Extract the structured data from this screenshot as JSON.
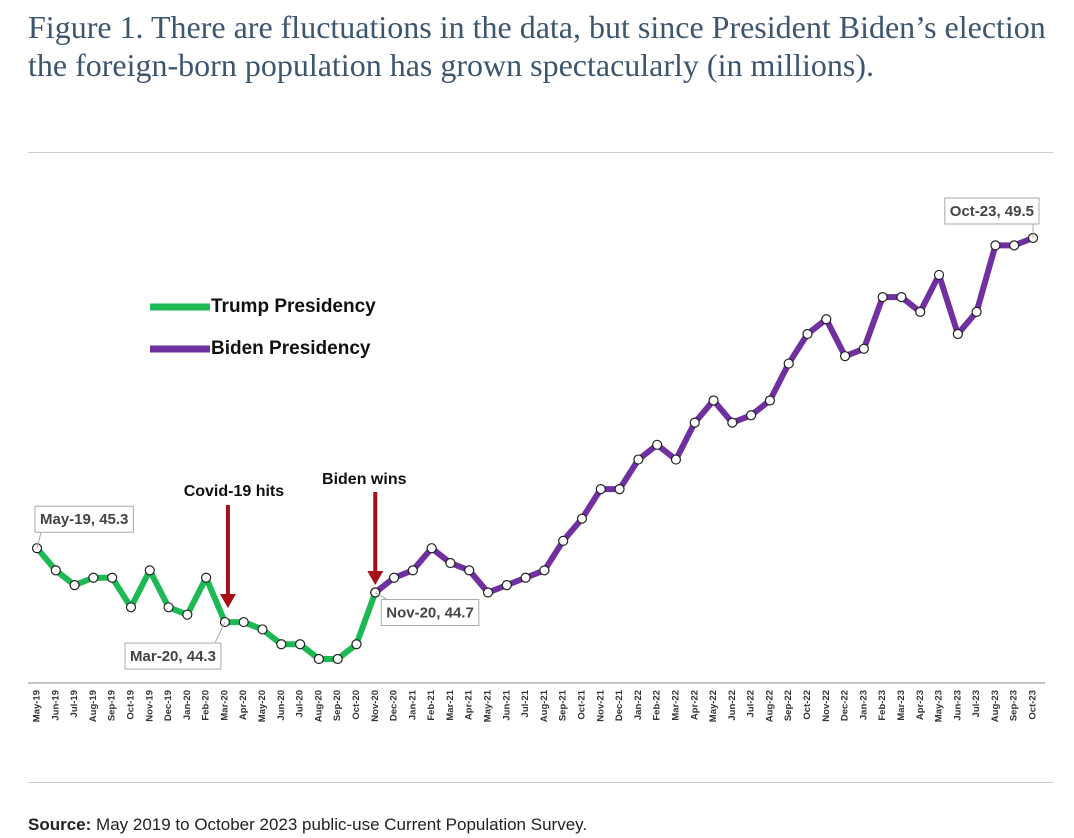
{
  "chart_data": {
    "type": "line",
    "title": "Figure 1. There are fluctuations in the data, but since President Biden’s election the foreign-born population has grown spectacularly (in millions).",
    "categories": [
      "May-19",
      "Jun-19",
      "Jul-19",
      "Aug-19",
      "Sep-19",
      "Oct-19",
      "Nov-19",
      "Dec-19",
      "Jan-20",
      "Feb-20",
      "Mar-20",
      "Apr-20",
      "May-20",
      "Jun-20",
      "Jul-20",
      "Aug-20",
      "Sep-20",
      "Oct-20",
      "Nov-20",
      "Dec-20",
      "Jan-21",
      "Feb-21",
      "Mar-21",
      "Apr-21",
      "May-21",
      "Jun-21",
      "Jul-21",
      "Aug-21",
      "Sep-21",
      "Oct-21",
      "Nov-21",
      "Dec-21",
      "Jan-22",
      "Feb-22",
      "Mar-22",
      "Apr-22",
      "May-22",
      "Jun-22",
      "Jul-22",
      "Aug-22",
      "Sep-22",
      "Oct-22",
      "Nov-22",
      "Dec-22",
      "Jan-23",
      "Feb-23",
      "Mar-23",
      "Apr-23",
      "May-23",
      "Jun-23",
      "Jul-23",
      "Aug-23",
      "Sep-23",
      "Oct-23"
    ],
    "series": [
      {
        "name": "Trump Presidency",
        "color": "#1db954",
        "values": [
          45.3,
          45.0,
          44.8,
          44.9,
          44.9,
          44.5,
          45.0,
          44.5,
          44.4,
          44.9,
          44.3,
          44.3,
          44.2,
          44.0,
          44.0,
          43.8,
          43.8,
          44.0,
          44.7,
          null,
          null,
          null,
          null,
          null,
          null,
          null,
          null,
          null,
          null,
          null,
          null,
          null,
          null,
          null,
          null,
          null,
          null,
          null,
          null,
          null,
          null,
          null,
          null,
          null,
          null,
          null,
          null,
          null,
          null,
          null,
          null,
          null,
          null,
          null
        ],
        "value_labels": [
          "May-19,  45.3",
          null,
          null,
          null,
          null,
          null,
          null,
          null,
          null,
          null,
          "Mar-20,  44.3",
          null,
          null,
          null,
          null,
          null,
          null,
          null,
          "Nov-20,  44.7",
          null,
          null,
          null,
          null,
          null,
          null,
          null,
          null,
          null,
          null,
          null,
          null,
          null,
          null,
          null,
          null,
          null,
          null,
          null,
          null,
          null,
          null,
          null,
          null,
          null,
          null,
          null,
          null,
          null,
          null,
          null,
          null,
          null,
          null,
          null
        ]
      },
      {
        "name": "Biden Presidency",
        "color": "#7030a0",
        "values": [
          null,
          null,
          null,
          null,
          null,
          null,
          null,
          null,
          null,
          null,
          null,
          null,
          null,
          null,
          null,
          null,
          null,
          null,
          44.7,
          44.9,
          45.0,
          45.3,
          45.1,
          45.0,
          44.7,
          44.8,
          44.9,
          45.0,
          45.4,
          45.7,
          46.1,
          46.1,
          46.5,
          46.7,
          46.5,
          47.0,
          47.3,
          47.0,
          47.1,
          47.3,
          47.8,
          48.2,
          48.4,
          47.9,
          48.0,
          48.7,
          48.7,
          48.5,
          49.0,
          48.2,
          48.5,
          49.4,
          49.4,
          49.5
        ],
        "value_labels": [
          null,
          null,
          null,
          null,
          null,
          null,
          null,
          null,
          null,
          null,
          null,
          null,
          null,
          null,
          null,
          null,
          null,
          null,
          null,
          null,
          null,
          null,
          null,
          null,
          null,
          null,
          null,
          null,
          null,
          null,
          null,
          null,
          null,
          null,
          null,
          null,
          null,
          null,
          null,
          null,
          null,
          null,
          null,
          null,
          null,
          null,
          null,
          null,
          null,
          null,
          null,
          null,
          null,
          "Oct-23,  49.5"
        ]
      }
    ],
    "annotations": [
      {
        "text": "Covid-19 hits",
        "x": "Mar-20"
      },
      {
        "text": "Biden wins",
        "x": "Nov-20"
      }
    ],
    "source": {
      "label": "Source:",
      "text": "May 2019 to October 2023 public-use Current Population Survey."
    }
  }
}
